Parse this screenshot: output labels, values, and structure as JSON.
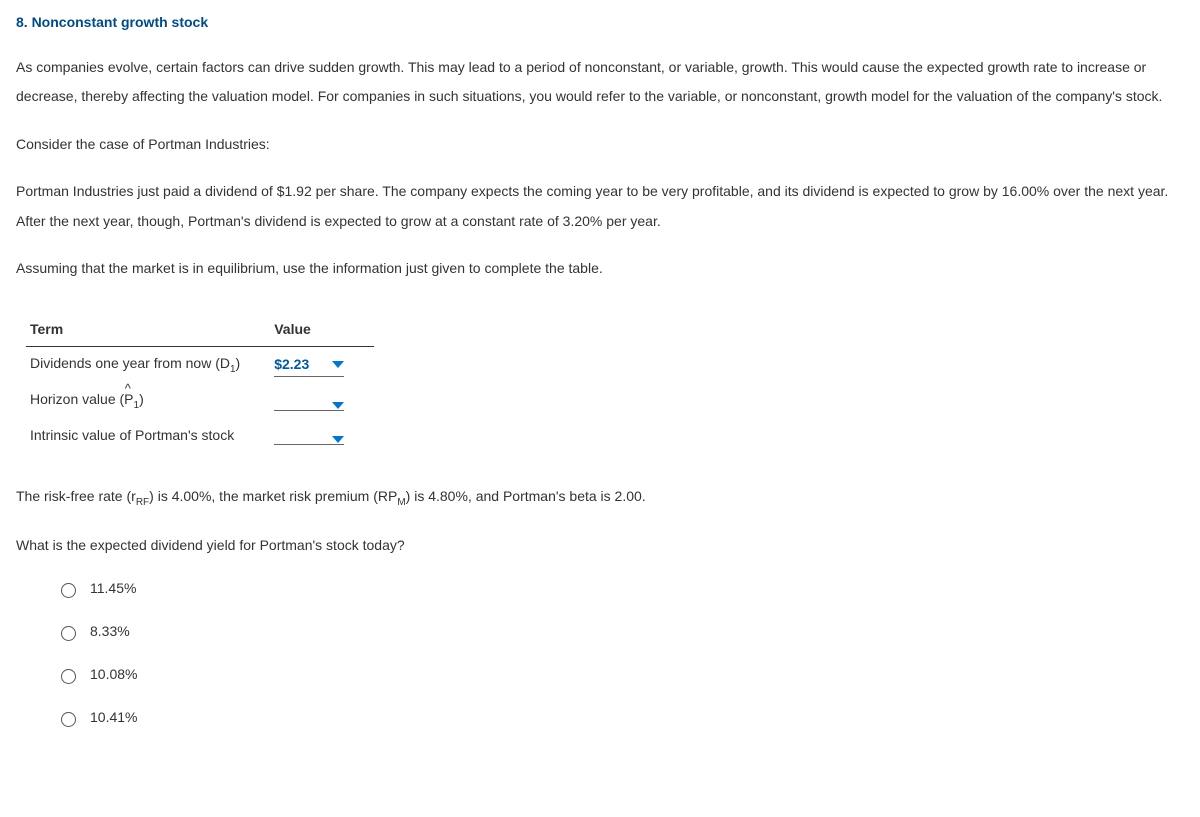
{
  "heading": "8. Nonconstant growth stock",
  "paragraphs": {
    "p1": "As companies evolve, certain factors can drive sudden growth. This may lead to a period of nonconstant, or variable, growth. This would cause the expected growth rate to increase or decrease, thereby affecting the valuation model. For companies in such situations, you would refer to the variable, or nonconstant, growth model for the valuation of the company's stock.",
    "p2": "Consider the case of Portman Industries:",
    "p3": "Portman Industries just paid a dividend of $1.92 per share. The company expects the coming year to be very profitable, and its dividend is expected to grow by 16.00% over the next year. After the next year, though, Portman's dividend is expected to grow at a constant rate of 3.20% per year.",
    "p4": "Assuming that the market is in equilibrium, use the information just given to complete the table."
  },
  "table": {
    "headers": {
      "term": "Term",
      "value": "Value"
    },
    "rows": [
      {
        "label_prefix": "Dividends one year from now (D",
        "label_sub": "1",
        "label_suffix": ")",
        "value": "$2.23"
      },
      {
        "label_prefix": "Horizon value (",
        "phat": true,
        "label_sub": "1",
        "label_suffix": ")",
        "value": ""
      },
      {
        "label_plain": "Intrinsic value of Portman's stock",
        "value": ""
      }
    ]
  },
  "risk_text": {
    "t1": "The risk-free rate (r",
    "sub1": "RF",
    "t2": ") is 4.00%, the market risk premium (RP",
    "sub2": "M",
    "t3": ") is 4.80%, and Portman's beta is 2.00."
  },
  "question": "What is the expected dividend yield for Portman's stock today?",
  "options": [
    "11.45%",
    "8.33%",
    "10.08%",
    "10.41%"
  ]
}
